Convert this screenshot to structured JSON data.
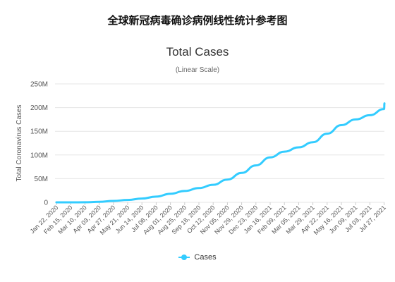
{
  "page": {
    "heading": "全球新冠病毒确诊病例线性统计参考图"
  },
  "chart_data": {
    "type": "line",
    "title": "Total Cases",
    "subtitle": "(Linear Scale)",
    "xlabel": "",
    "ylabel": "Total Coronavirus Cases",
    "ylim": [
      0,
      250
    ],
    "y_unit": "M",
    "yticks": [
      "0",
      "50M",
      "100M",
      "150M",
      "200M",
      "250M"
    ],
    "grid": true,
    "legend": "bottom-center",
    "categories": [
      "Jan 22, 2020",
      "Feb 15, 2020",
      "Mar 10, 2020",
      "Apr 03, 2020",
      "Apr 27, 2020",
      "May 21, 2020",
      "Jun 14, 2020",
      "Jul 08, 2020",
      "Aug 01, 2020",
      "Aug 25, 2020",
      "Sep 18, 2020",
      "Oct 12, 2020",
      "Nov 05, 2020",
      "Nov 29, 2020",
      "Dec 23, 2020",
      "Jan 16, 2021",
      "Feb 09, 2021",
      "Mar 05, 2021",
      "Mar 29, 2021",
      "Apr 22, 2021",
      "May 16, 2021",
      "Jun 09, 2021",
      "Jul 03, 2021",
      "Jul 27, 2021"
    ],
    "series": [
      {
        "name": "Cases",
        "color": "#33ccff",
        "values": [
          0.0006,
          0.07,
          0.12,
          1.0,
          3.0,
          5.0,
          8.0,
          12.0,
          18.0,
          24.0,
          30.0,
          37.0,
          48.0,
          62.0,
          78.0,
          95.0,
          107.0,
          116.0,
          127.0,
          145.0,
          163.0,
          175.0,
          184.0,
          197.0
        ],
        "last_value": 209
      }
    ]
  }
}
